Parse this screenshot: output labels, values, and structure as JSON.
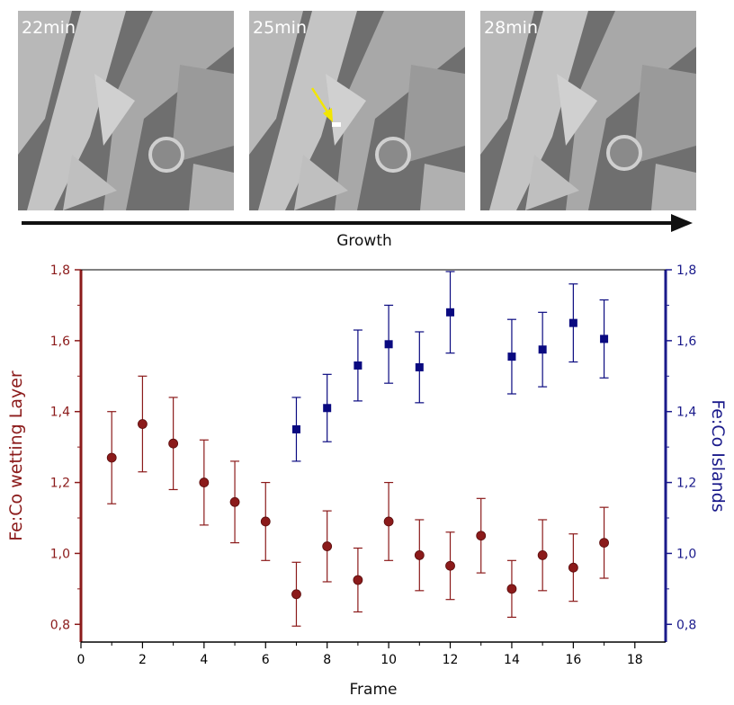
{
  "figure": {
    "panels": [
      {
        "time": "22min"
      },
      {
        "time": "25min",
        "arrow_color": "#f2e600"
      },
      {
        "time": "28min"
      }
    ],
    "growth_label": "Growth"
  },
  "chart_data": {
    "type": "scatter",
    "xlabel": "Frame",
    "ylabel_left": "Fe:Co wetting Layer",
    "ylabel_right": "Fe:Co Islands",
    "xlim": [
      0,
      19
    ],
    "ylim_left": [
      0.75,
      1.8
    ],
    "ylim_right": [
      0.75,
      1.8
    ],
    "x_ticks": [
      "0",
      "2",
      "4",
      "6",
      "8",
      "10",
      "12",
      "14",
      "16",
      "18"
    ],
    "y_ticks_left": [
      "0,8",
      "1,0",
      "1,2",
      "1,4",
      "1,6",
      "1,8"
    ],
    "y_ticks_right": [
      "0,8",
      "1,0",
      "1,2",
      "1,4",
      "1,6",
      "1,8"
    ],
    "left_axis_color": "#8b1a1a",
    "right_axis_color": "#1a1a8b",
    "series": [
      {
        "axis": "left",
        "marker": "circle",
        "color": "#8b1a1a",
        "x": [
          1,
          2,
          3,
          4,
          5,
          6,
          7,
          8,
          9,
          10,
          11,
          12,
          13,
          14,
          15,
          16,
          17
        ],
        "y": [
          1.27,
          1.365,
          1.31,
          1.2,
          1.145,
          1.09,
          0.885,
          1.02,
          0.925,
          1.09,
          0.995,
          0.965,
          1.05,
          0.9,
          0.995,
          0.96,
          1.03
        ],
        "err": [
          0.13,
          0.135,
          0.13,
          0.12,
          0.115,
          0.11,
          0.09,
          0.1,
          0.09,
          0.11,
          0.1,
          0.095,
          0.105,
          0.08,
          0.1,
          0.095,
          0.1
        ]
      },
      {
        "axis": "right",
        "marker": "square",
        "color": "#0a0a80",
        "x": [
          7,
          8,
          9,
          10,
          11,
          12,
          14,
          15,
          16,
          17
        ],
        "y": [
          1.35,
          1.41,
          1.53,
          1.59,
          1.525,
          1.68,
          1.555,
          1.575,
          1.65,
          1.605
        ],
        "err": [
          0.09,
          0.095,
          0.1,
          0.11,
          0.1,
          0.115,
          0.105,
          0.105,
          0.11,
          0.11
        ]
      }
    ]
  }
}
